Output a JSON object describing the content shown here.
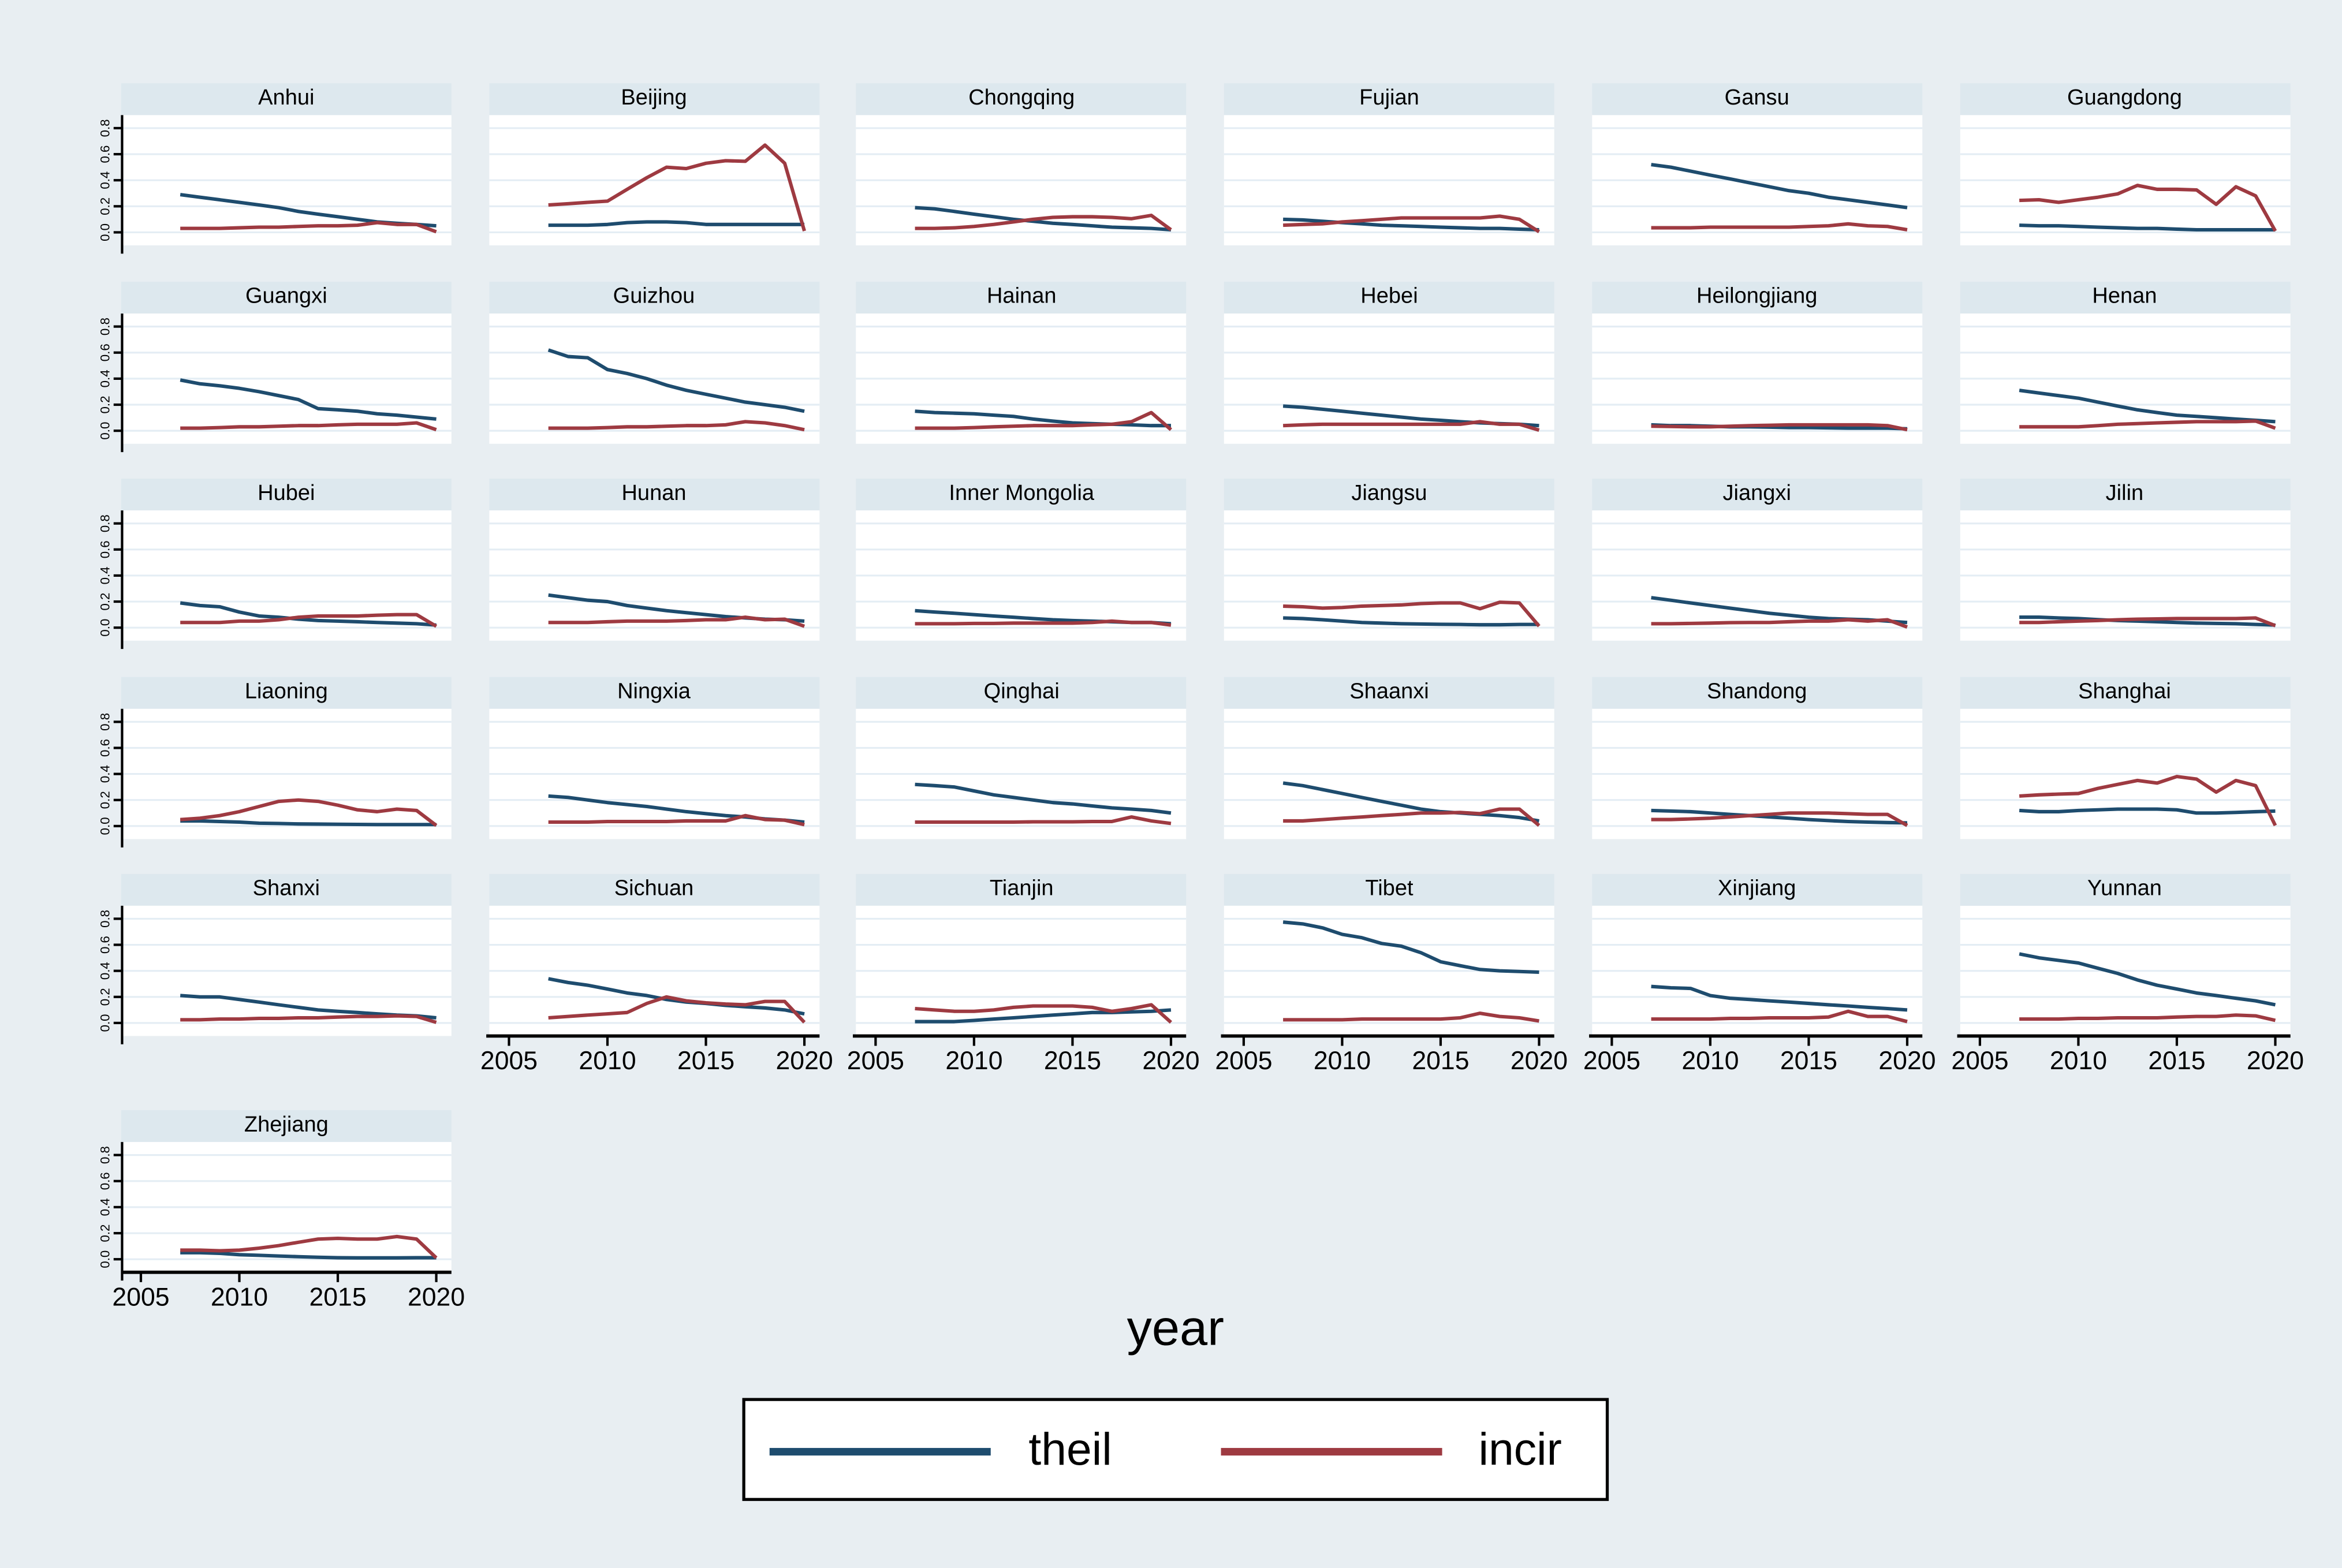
{
  "figure": {
    "xlabel": "year",
    "legend": [
      {
        "label": "theil",
        "color": "#1e4c6e"
      },
      {
        "label": "incir",
        "color": "#9e3a41"
      }
    ],
    "colors": {
      "background": "#e8eef2",
      "panel_title_bg": "#dde8ee",
      "plot_bg": "#ffffff",
      "gridline": "#e4edf4",
      "axis": "#000000",
      "theil": "#1e4c6e",
      "incir": "#9e3a41"
    }
  },
  "chart_data": {
    "type": "line",
    "title": "",
    "xlabel": "year",
    "ylabel": "",
    "grid": "horizontal",
    "legend_position": "bottom",
    "x_years": [
      2007,
      2008,
      2009,
      2010,
      2011,
      2012,
      2013,
      2014,
      2015,
      2016,
      2017,
      2018,
      2019,
      2020
    ],
    "x_axis": {
      "range": [
        2004.4,
        2020.8
      ],
      "ticks": [
        2005,
        2010,
        2015,
        2020
      ],
      "tick_labels": [
        "2005",
        "2010",
        "2015",
        "2020"
      ]
    },
    "y_axis": {
      "range": [
        -0.1,
        0.9
      ],
      "ticks": [
        0.0,
        0.2,
        0.4,
        0.6,
        0.8
      ],
      "tick_labels": [
        "0.0",
        "0.2",
        "0.4",
        "0.6",
        "0.8"
      ]
    },
    "series_names": [
      "theil",
      "incir"
    ],
    "series_colors": {
      "theil": "#1e4c6e",
      "incir": "#9e3a41"
    },
    "panels": [
      {
        "name": "Anhui",
        "theil": [
          0.29,
          0.27,
          0.25,
          0.23,
          0.21,
          0.19,
          0.16,
          0.14,
          0.12,
          0.1,
          0.08,
          0.07,
          0.06,
          0.05
        ],
        "incir": [
          0.03,
          0.03,
          0.03,
          0.035,
          0.04,
          0.04,
          0.045,
          0.05,
          0.05,
          0.055,
          0.075,
          0.06,
          0.06,
          0.005
        ]
      },
      {
        "name": "Beijing",
        "theil": [
          0.055,
          0.055,
          0.055,
          0.06,
          0.075,
          0.08,
          0.08,
          0.075,
          0.06,
          0.06,
          0.06,
          0.06,
          0.06,
          0.06
        ],
        "incir": [
          0.21,
          0.22,
          0.23,
          0.24,
          0.33,
          0.42,
          0.5,
          0.49,
          0.53,
          0.55,
          0.545,
          0.67,
          0.53,
          0.01
        ]
      },
      {
        "name": "Chongqing",
        "theil": [
          0.19,
          0.18,
          0.16,
          0.14,
          0.12,
          0.1,
          0.085,
          0.07,
          0.06,
          0.05,
          0.04,
          0.035,
          0.03,
          0.02
        ],
        "incir": [
          0.03,
          0.03,
          0.035,
          0.045,
          0.06,
          0.08,
          0.1,
          0.115,
          0.12,
          0.12,
          0.115,
          0.105,
          0.13,
          0.02
        ]
      },
      {
        "name": "Fujian",
        "theil": [
          0.1,
          0.095,
          0.085,
          0.075,
          0.065,
          0.055,
          0.05,
          0.045,
          0.04,
          0.035,
          0.03,
          0.03,
          0.025,
          0.02
        ],
        "incir": [
          0.055,
          0.06,
          0.065,
          0.08,
          0.09,
          0.1,
          0.11,
          0.11,
          0.11,
          0.11,
          0.11,
          0.125,
          0.1,
          0.005
        ]
      },
      {
        "name": "Gansu",
        "theil": [
          0.52,
          0.5,
          0.47,
          0.44,
          0.41,
          0.38,
          0.35,
          0.32,
          0.3,
          0.27,
          0.25,
          0.23,
          0.21,
          0.19
        ],
        "incir": [
          0.035,
          0.035,
          0.035,
          0.04,
          0.04,
          0.04,
          0.04,
          0.04,
          0.045,
          0.05,
          0.065,
          0.05,
          0.045,
          0.02
        ]
      },
      {
        "name": "Guangdong",
        "theil": [
          0.055,
          0.05,
          0.05,
          0.045,
          0.04,
          0.035,
          0.03,
          0.03,
          0.025,
          0.02,
          0.02,
          0.02,
          0.02,
          0.02
        ],
        "incir": [
          0.245,
          0.25,
          0.23,
          0.25,
          0.27,
          0.295,
          0.36,
          0.33,
          0.33,
          0.325,
          0.215,
          0.35,
          0.28,
          0.01
        ]
      },
      {
        "name": "Guangxi",
        "theil": [
          0.39,
          0.36,
          0.345,
          0.325,
          0.3,
          0.27,
          0.24,
          0.17,
          0.16,
          0.15,
          0.13,
          0.12,
          0.105,
          0.09
        ],
        "incir": [
          0.02,
          0.02,
          0.025,
          0.03,
          0.03,
          0.035,
          0.04,
          0.04,
          0.045,
          0.05,
          0.05,
          0.05,
          0.06,
          0.008
        ]
      },
      {
        "name": "Guizhou",
        "theil": [
          0.62,
          0.57,
          0.56,
          0.47,
          0.44,
          0.4,
          0.35,
          0.31,
          0.28,
          0.25,
          0.22,
          0.2,
          0.18,
          0.15
        ],
        "incir": [
          0.02,
          0.02,
          0.02,
          0.025,
          0.03,
          0.03,
          0.035,
          0.04,
          0.04,
          0.045,
          0.07,
          0.06,
          0.04,
          0.008
        ]
      },
      {
        "name": "Hainan",
        "theil": [
          0.15,
          0.14,
          0.135,
          0.13,
          0.12,
          0.11,
          0.09,
          0.075,
          0.06,
          0.055,
          0.05,
          0.045,
          0.04,
          0.04
        ],
        "incir": [
          0.02,
          0.02,
          0.02,
          0.025,
          0.03,
          0.035,
          0.04,
          0.04,
          0.04,
          0.045,
          0.05,
          0.07,
          0.14,
          0.008
        ]
      },
      {
        "name": "Hebei",
        "theil": [
          0.19,
          0.18,
          0.165,
          0.15,
          0.135,
          0.12,
          0.105,
          0.09,
          0.08,
          0.07,
          0.06,
          0.055,
          0.05,
          0.04
        ],
        "incir": [
          0.04,
          0.045,
          0.05,
          0.05,
          0.05,
          0.05,
          0.05,
          0.05,
          0.05,
          0.05,
          0.07,
          0.05,
          0.05,
          0.005
        ]
      },
      {
        "name": "Heilongjiang",
        "theil": [
          0.045,
          0.04,
          0.04,
          0.035,
          0.03,
          0.03,
          0.028,
          0.025,
          0.025,
          0.022,
          0.02,
          0.02,
          0.02,
          0.015
        ],
        "incir": [
          0.035,
          0.033,
          0.03,
          0.03,
          0.035,
          0.04,
          0.042,
          0.045,
          0.045,
          0.045,
          0.045,
          0.045,
          0.04,
          0.008
        ]
      },
      {
        "name": "Henan",
        "theil": [
          0.31,
          0.29,
          0.27,
          0.25,
          0.22,
          0.19,
          0.16,
          0.14,
          0.12,
          0.11,
          0.1,
          0.09,
          0.08,
          0.07
        ],
        "incir": [
          0.03,
          0.03,
          0.03,
          0.03,
          0.04,
          0.05,
          0.055,
          0.06,
          0.065,
          0.07,
          0.07,
          0.07,
          0.075,
          0.02
        ]
      },
      {
        "name": "Hubei",
        "theil": [
          0.19,
          0.17,
          0.16,
          0.12,
          0.09,
          0.08,
          0.065,
          0.055,
          0.05,
          0.045,
          0.04,
          0.035,
          0.03,
          0.02
        ],
        "incir": [
          0.04,
          0.04,
          0.04,
          0.05,
          0.05,
          0.06,
          0.08,
          0.09,
          0.09,
          0.09,
          0.095,
          0.1,
          0.1,
          0.01
        ]
      },
      {
        "name": "Hunan",
        "theil": [
          0.25,
          0.23,
          0.21,
          0.2,
          0.17,
          0.15,
          0.13,
          0.115,
          0.1,
          0.085,
          0.075,
          0.065,
          0.06,
          0.05
        ],
        "incir": [
          0.04,
          0.04,
          0.04,
          0.045,
          0.05,
          0.05,
          0.05,
          0.055,
          0.06,
          0.06,
          0.08,
          0.06,
          0.065,
          0.01
        ]
      },
      {
        "name": "Inner Mongolia",
        "theil": [
          0.13,
          0.12,
          0.11,
          0.1,
          0.09,
          0.08,
          0.07,
          0.06,
          0.055,
          0.05,
          0.045,
          0.04,
          0.04,
          0.03
        ],
        "incir": [
          0.03,
          0.03,
          0.03,
          0.032,
          0.033,
          0.035,
          0.035,
          0.035,
          0.035,
          0.04,
          0.05,
          0.04,
          0.04,
          0.02
        ]
      },
      {
        "name": "Jiangsu",
        "theil": [
          0.075,
          0.07,
          0.06,
          0.05,
          0.04,
          0.035,
          0.03,
          0.028,
          0.026,
          0.025,
          0.022,
          0.022,
          0.025,
          0.025
        ],
        "incir": [
          0.165,
          0.16,
          0.15,
          0.155,
          0.165,
          0.17,
          0.175,
          0.185,
          0.19,
          0.19,
          0.145,
          0.195,
          0.19,
          0.012
        ]
      },
      {
        "name": "Jiangxi",
        "theil": [
          0.23,
          0.21,
          0.19,
          0.17,
          0.15,
          0.13,
          0.11,
          0.095,
          0.08,
          0.07,
          0.065,
          0.06,
          0.05,
          0.04
        ],
        "incir": [
          0.03,
          0.03,
          0.033,
          0.035,
          0.038,
          0.04,
          0.04,
          0.045,
          0.05,
          0.05,
          0.06,
          0.05,
          0.06,
          0.005
        ]
      },
      {
        "name": "Jilin",
        "theil": [
          0.08,
          0.08,
          0.075,
          0.07,
          0.062,
          0.055,
          0.05,
          0.045,
          0.04,
          0.035,
          0.032,
          0.03,
          0.025,
          0.02
        ],
        "incir": [
          0.04,
          0.04,
          0.045,
          0.05,
          0.055,
          0.06,
          0.065,
          0.068,
          0.07,
          0.07,
          0.07,
          0.07,
          0.075,
          0.015
        ]
      },
      {
        "name": "Liaoning",
        "theil": [
          0.04,
          0.04,
          0.035,
          0.03,
          0.022,
          0.02,
          0.016,
          0.015,
          0.014,
          0.013,
          0.012,
          0.012,
          0.012,
          0.012
        ],
        "incir": [
          0.05,
          0.06,
          0.08,
          0.11,
          0.15,
          0.19,
          0.2,
          0.19,
          0.16,
          0.125,
          0.11,
          0.13,
          0.12,
          0.005
        ]
      },
      {
        "name": "Ningxia",
        "theil": [
          0.23,
          0.22,
          0.2,
          0.18,
          0.165,
          0.15,
          0.13,
          0.11,
          0.095,
          0.08,
          0.07,
          0.055,
          0.045,
          0.03
        ],
        "incir": [
          0.03,
          0.03,
          0.03,
          0.035,
          0.035,
          0.035,
          0.035,
          0.04,
          0.04,
          0.04,
          0.08,
          0.05,
          0.045,
          0.01
        ]
      },
      {
        "name": "Qinghai",
        "theil": [
          0.32,
          0.31,
          0.3,
          0.27,
          0.24,
          0.22,
          0.2,
          0.18,
          0.17,
          0.155,
          0.14,
          0.13,
          0.12,
          0.1
        ],
        "incir": [
          0.03,
          0.03,
          0.03,
          0.03,
          0.03,
          0.03,
          0.032,
          0.033,
          0.033,
          0.035,
          0.035,
          0.07,
          0.04,
          0.02
        ]
      },
      {
        "name": "Shaanxi",
        "theil": [
          0.33,
          0.31,
          0.28,
          0.25,
          0.22,
          0.19,
          0.16,
          0.13,
          0.11,
          0.1,
          0.09,
          0.08,
          0.065,
          0.04
        ],
        "incir": [
          0.04,
          0.04,
          0.05,
          0.06,
          0.07,
          0.08,
          0.09,
          0.1,
          0.1,
          0.105,
          0.095,
          0.13,
          0.13,
          0.005
        ]
      },
      {
        "name": "Shandong",
        "theil": [
          0.12,
          0.115,
          0.11,
          0.1,
          0.09,
          0.08,
          0.07,
          0.06,
          0.05,
          0.042,
          0.035,
          0.03,
          0.027,
          0.025
        ],
        "incir": [
          0.05,
          0.05,
          0.055,
          0.06,
          0.07,
          0.08,
          0.09,
          0.1,
          0.1,
          0.1,
          0.095,
          0.09,
          0.09,
          0.005
        ]
      },
      {
        "name": "Shanghai",
        "theil": [
          0.12,
          0.11,
          0.11,
          0.12,
          0.125,
          0.13,
          0.13,
          0.13,
          0.125,
          0.1,
          0.1,
          0.105,
          0.11,
          0.115
        ],
        "incir": [
          0.23,
          0.24,
          0.245,
          0.25,
          0.29,
          0.32,
          0.35,
          0.33,
          0.38,
          0.36,
          0.26,
          0.35,
          0.31,
          0.005
        ]
      },
      {
        "name": "Shanxi",
        "theil": [
          0.21,
          0.2,
          0.2,
          0.18,
          0.16,
          0.14,
          0.12,
          0.1,
          0.09,
          0.08,
          0.07,
          0.06,
          0.055,
          0.04
        ],
        "incir": [
          0.025,
          0.025,
          0.03,
          0.03,
          0.035,
          0.035,
          0.04,
          0.04,
          0.045,
          0.05,
          0.05,
          0.055,
          0.05,
          0.005
        ]
      },
      {
        "name": "Sichuan",
        "theil": [
          0.34,
          0.31,
          0.29,
          0.26,
          0.23,
          0.21,
          0.18,
          0.16,
          0.15,
          0.135,
          0.125,
          0.115,
          0.1,
          0.07
        ],
        "incir": [
          0.04,
          0.05,
          0.06,
          0.07,
          0.08,
          0.15,
          0.2,
          0.17,
          0.155,
          0.145,
          0.14,
          0.165,
          0.165,
          0.005
        ]
      },
      {
        "name": "Tianjin",
        "theil": [
          0.01,
          0.01,
          0.01,
          0.02,
          0.03,
          0.04,
          0.05,
          0.06,
          0.07,
          0.08,
          0.08,
          0.085,
          0.09,
          0.1
        ],
        "incir": [
          0.11,
          0.1,
          0.09,
          0.09,
          0.1,
          0.12,
          0.13,
          0.13,
          0.13,
          0.12,
          0.09,
          0.11,
          0.14,
          0.005
        ]
      },
      {
        "name": "Tibet",
        "theil": [
          0.775,
          0.76,
          0.73,
          0.68,
          0.655,
          0.61,
          0.59,
          0.54,
          0.47,
          0.44,
          0.41,
          0.4,
          0.395,
          0.39
        ],
        "incir": [
          0.025,
          0.025,
          0.025,
          0.025,
          0.03,
          0.03,
          0.03,
          0.03,
          0.03,
          0.04,
          0.075,
          0.05,
          0.04,
          0.015
        ]
      },
      {
        "name": "Xinjiang",
        "theil": [
          0.28,
          0.27,
          0.265,
          0.21,
          0.19,
          0.18,
          0.17,
          0.16,
          0.15,
          0.14,
          0.13,
          0.12,
          0.11,
          0.1
        ],
        "incir": [
          0.03,
          0.03,
          0.03,
          0.03,
          0.035,
          0.035,
          0.04,
          0.04,
          0.04,
          0.045,
          0.09,
          0.05,
          0.05,
          0.01
        ]
      },
      {
        "name": "Yunnan",
        "theil": [
          0.53,
          0.5,
          0.48,
          0.46,
          0.42,
          0.38,
          0.33,
          0.29,
          0.26,
          0.23,
          0.21,
          0.19,
          0.17,
          0.14
        ],
        "incir": [
          0.03,
          0.03,
          0.03,
          0.035,
          0.035,
          0.04,
          0.04,
          0.04,
          0.045,
          0.05,
          0.05,
          0.06,
          0.055,
          0.02
        ]
      },
      {
        "name": "Zhejiang",
        "theil": [
          0.05,
          0.05,
          0.045,
          0.035,
          0.03,
          0.025,
          0.02,
          0.015,
          0.012,
          0.01,
          0.01,
          0.01,
          0.012,
          0.012
        ],
        "incir": [
          0.07,
          0.07,
          0.065,
          0.07,
          0.085,
          0.105,
          0.13,
          0.155,
          0.16,
          0.155,
          0.155,
          0.175,
          0.155,
          0.01
        ]
      }
    ]
  }
}
